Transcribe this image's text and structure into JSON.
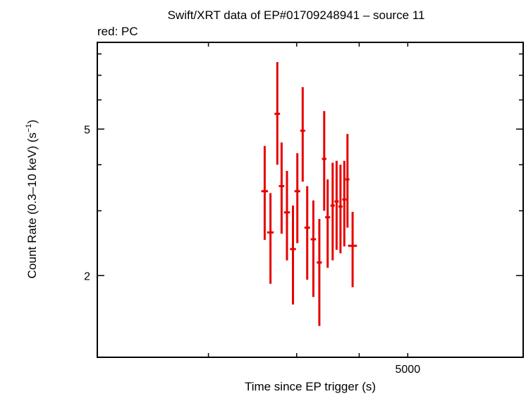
{
  "chart_data": {
    "type": "scatter",
    "title": "Swift/XRT data of EP#01709248941 – source 11",
    "subtitle": "red: PC",
    "xlabel": "Time since EP trigger (s)",
    "ylabel": "Count Rate (0.3–10 keV) (s",
    "ylabel_sup": "−1",
    "ylabel_end": ")",
    "x_scale": "log",
    "y_scale": "log",
    "xlim": [
      1200,
      8500
    ],
    "ylim": [
      1.2,
      8.6
    ],
    "x_tick_labels": [
      {
        "value": 5000,
        "label": "5000"
      }
    ],
    "x_minor_ticks": [
      2000,
      3000,
      4000,
      5000
    ],
    "y_tick_labels": [
      {
        "value": 2,
        "label": "2"
      },
      {
        "value": 5,
        "label": "5"
      }
    ],
    "y_minor_ticks": [
      2,
      3,
      4,
      5,
      6,
      7,
      8
    ],
    "grid": false,
    "series_color": "#e60000",
    "points": [
      {
        "x": 2590,
        "xerr": 40,
        "y": 3.39,
        "ylo": 2.5,
        "yhi": 4.5
      },
      {
        "x": 2660,
        "xerr": 40,
        "y": 2.62,
        "ylo": 1.9,
        "yhi": 3.35
      },
      {
        "x": 2745,
        "xerr": 35,
        "y": 5.5,
        "ylo": 4.0,
        "yhi": 7.6
      },
      {
        "x": 2800,
        "xerr": 35,
        "y": 3.5,
        "ylo": 2.6,
        "yhi": 4.6
      },
      {
        "x": 2870,
        "xerr": 40,
        "y": 2.97,
        "ylo": 2.2,
        "yhi": 3.85
      },
      {
        "x": 2950,
        "xerr": 40,
        "y": 2.36,
        "ylo": 1.67,
        "yhi": 3.1
      },
      {
        "x": 3010,
        "xerr": 40,
        "y": 3.39,
        "ylo": 2.45,
        "yhi": 4.3
      },
      {
        "x": 3085,
        "xerr": 35,
        "y": 4.95,
        "ylo": 3.6,
        "yhi": 6.5
      },
      {
        "x": 3150,
        "xerr": 40,
        "y": 2.7,
        "ylo": 1.95,
        "yhi": 3.5
      },
      {
        "x": 3240,
        "xerr": 40,
        "y": 2.51,
        "ylo": 1.75,
        "yhi": 3.2
      },
      {
        "x": 3330,
        "xerr": 40,
        "y": 2.17,
        "ylo": 1.46,
        "yhi": 2.85
      },
      {
        "x": 3405,
        "xerr": 35,
        "y": 4.15,
        "ylo": 3.0,
        "yhi": 5.6
      },
      {
        "x": 3460,
        "xerr": 40,
        "y": 2.88,
        "ylo": 2.1,
        "yhi": 3.65
      },
      {
        "x": 3540,
        "xerr": 35,
        "y": 3.1,
        "ylo": 2.2,
        "yhi": 4.05
      },
      {
        "x": 3605,
        "xerr": 35,
        "y": 3.18,
        "ylo": 2.35,
        "yhi": 4.1
      },
      {
        "x": 3670,
        "xerr": 35,
        "y": 3.08,
        "ylo": 2.3,
        "yhi": 4.0
      },
      {
        "x": 3735,
        "xerr": 35,
        "y": 3.22,
        "ylo": 2.4,
        "yhi": 4.1
      },
      {
        "x": 3790,
        "xerr": 35,
        "y": 3.65,
        "ylo": 2.7,
        "yhi": 4.85
      },
      {
        "x": 3880,
        "xerr": 80,
        "y": 2.41,
        "ylo": 1.86,
        "yhi": 2.98
      }
    ]
  }
}
